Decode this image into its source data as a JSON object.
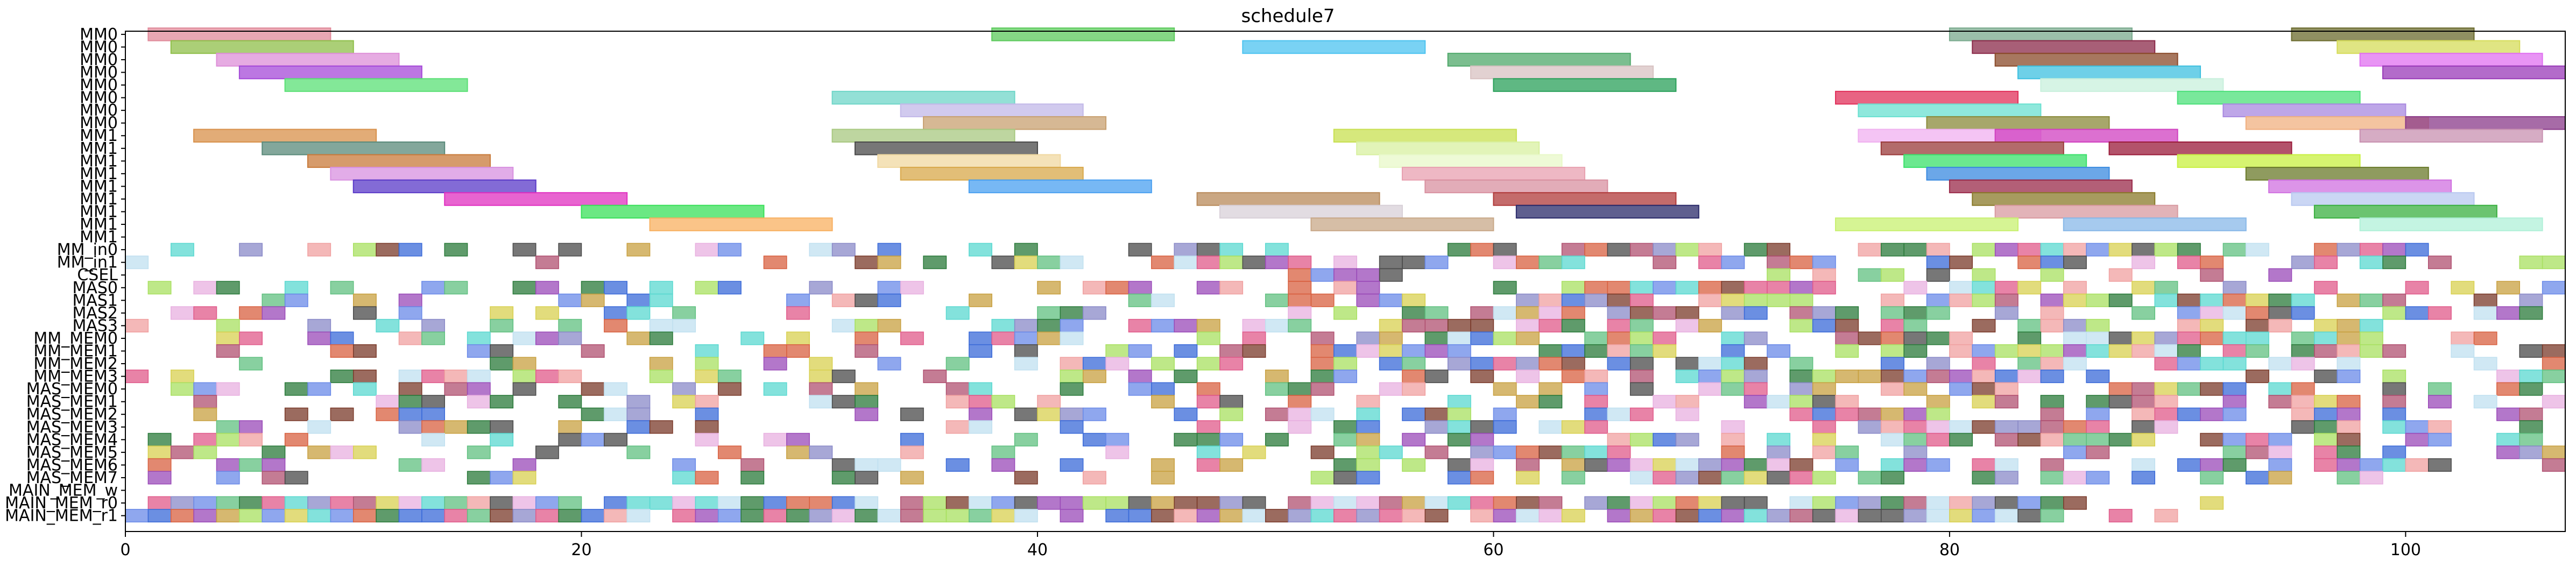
{
  "chart_data": {
    "type": "gantt",
    "title": "schedule7",
    "xlabel": "",
    "ylabel": "",
    "xlim": [
      0,
      107
    ],
    "x_ticks": [
      0,
      20,
      40,
      60,
      80,
      100
    ],
    "x_tick_labels": [
      "0",
      "20",
      "40",
      "60",
      "80",
      "100"
    ],
    "rows": [
      "MM0",
      "MM0",
      "MM0",
      "MM0",
      "MM0",
      "MM0",
      "MM0",
      "MM0",
      "MM1",
      "MM1",
      "MM1",
      "MM1",
      "MM1",
      "MM1",
      "MM1",
      "MM1",
      "MM1",
      "MM_in0",
      "MM_in1",
      "CSEL",
      "MAS0",
      "MAS1",
      "MAS2",
      "MAS3",
      "MM_MEM0",
      "MM_MEM1",
      "MM_MEM2",
      "MM_MEM3",
      "MAS_MEM0",
      "MAS_MEM1",
      "MAS_MEM2",
      "MAS_MEM3",
      "MAS_MEM4",
      "MAS_MEM5",
      "MAS_MEM6",
      "MAS_MEM7",
      "MAIN_MEM_w",
      "MAIN_MEM_r0",
      "MAIN_MEM_r1"
    ],
    "tasks": [
      {
        "row": 0,
        "start": 1,
        "end": 9,
        "color": "#e08a9a"
      },
      {
        "row": 0,
        "start": 38,
        "end": 46,
        "color": "#5cc95c"
      },
      {
        "row": 0,
        "start": 80,
        "end": 88,
        "color": "#7aaa8e"
      },
      {
        "row": 0,
        "start": 95,
        "end": 103,
        "color": "#6b6b2e"
      },
      {
        "row": 1,
        "start": 2,
        "end": 10,
        "color": "#8fbf4a"
      },
      {
        "row": 1,
        "start": 49,
        "end": 57,
        "color": "#4cc3f0"
      },
      {
        "row": 1,
        "start": 81,
        "end": 89,
        "color": "#8b2a4a"
      },
      {
        "row": 1,
        "start": 97,
        "end": 105,
        "color": "#d6dc5a"
      },
      {
        "row": 2,
        "start": 4,
        "end": 12,
        "color": "#de8fd8"
      },
      {
        "row": 2,
        "start": 58,
        "end": 66,
        "color": "#4fa86a"
      },
      {
        "row": 2,
        "start": 82,
        "end": 90,
        "color": "#8a4a2a"
      },
      {
        "row": 2,
        "start": 98,
        "end": 106,
        "color": "#e070f0"
      },
      {
        "row": 3,
        "start": 5,
        "end": 13,
        "color": "#a54ad8"
      },
      {
        "row": 3,
        "start": 59,
        "end": 67,
        "color": "#d8c2c2"
      },
      {
        "row": 3,
        "start": 83,
        "end": 91,
        "color": "#3ec0e0"
      },
      {
        "row": 3,
        "start": 99,
        "end": 107,
        "color": "#9a3ab8"
      },
      {
        "row": 4,
        "start": 7,
        "end": 15,
        "color": "#5ae075"
      },
      {
        "row": 4,
        "start": 60,
        "end": 68,
        "color": "#2aa05a"
      },
      {
        "row": 4,
        "start": 84,
        "end": 92,
        "color": "#c8f0dc"
      },
      {
        "row": 5,
        "start": 31,
        "end": 39,
        "color": "#6fd6c8"
      },
      {
        "row": 5,
        "start": 75,
        "end": 83,
        "color": "#e0305a"
      },
      {
        "row": 5,
        "start": 90,
        "end": 98,
        "color": "#4ce07a"
      },
      {
        "row": 6,
        "start": 34,
        "end": 42,
        "color": "#c2b8e8"
      },
      {
        "row": 6,
        "start": 76,
        "end": 84,
        "color": "#6ae0d0"
      },
      {
        "row": 6,
        "start": 92,
        "end": 100,
        "color": "#a888e0"
      },
      {
        "row": 7,
        "start": 35,
        "end": 43,
        "color": "#c8a070"
      },
      {
        "row": 7,
        "start": 79,
        "end": 87,
        "color": "#8a8a3a"
      },
      {
        "row": 7,
        "start": 93,
        "end": 101,
        "color": "#f0b080"
      },
      {
        "row": 7,
        "start": 100,
        "end": 108,
        "color": "#8a3a8a"
      },
      {
        "row": 8,
        "start": 3,
        "end": 11,
        "color": "#d8904a"
      },
      {
        "row": 8,
        "start": 31,
        "end": 39,
        "color": "#a8c880"
      },
      {
        "row": 8,
        "start": 53,
        "end": 61,
        "color": "#c8e050"
      },
      {
        "row": 8,
        "start": 76,
        "end": 84,
        "color": "#f0b0f0"
      },
      {
        "row": 8,
        "start": 82,
        "end": 90,
        "color": "#d040c0"
      },
      {
        "row": 8,
        "start": 98,
        "end": 106,
        "color": "#c890b0"
      },
      {
        "row": 9,
        "start": 6,
        "end": 14,
        "color": "#5a8a7a"
      },
      {
        "row": 9,
        "start": 32,
        "end": 40,
        "color": "#4a4a4a"
      },
      {
        "row": 9,
        "start": 54,
        "end": 62,
        "color": "#d8f0a0"
      },
      {
        "row": 9,
        "start": 77,
        "end": 85,
        "color": "#9a3a3a"
      },
      {
        "row": 9,
        "start": 87,
        "end": 95,
        "color": "#9a1a3a"
      },
      {
        "row": 10,
        "start": 8,
        "end": 16,
        "color": "#c87a3a"
      },
      {
        "row": 10,
        "start": 33,
        "end": 41,
        "color": "#f0d8a0"
      },
      {
        "row": 10,
        "start": 55,
        "end": 63,
        "color": "#e8f8c8"
      },
      {
        "row": 10,
        "start": 78,
        "end": 86,
        "color": "#3ae06a"
      },
      {
        "row": 10,
        "start": 90,
        "end": 98,
        "color": "#c8f040"
      },
      {
        "row": 11,
        "start": 9,
        "end": 17,
        "color": "#d890e0"
      },
      {
        "row": 11,
        "start": 34,
        "end": 42,
        "color": "#d8a84a"
      },
      {
        "row": 11,
        "start": 56,
        "end": 64,
        "color": "#e8a0b0"
      },
      {
        "row": 11,
        "start": 79,
        "end": 87,
        "color": "#3a8ae0"
      },
      {
        "row": 11,
        "start": 93,
        "end": 101,
        "color": "#6a7a2a"
      },
      {
        "row": 12,
        "start": 10,
        "end": 18,
        "color": "#5a3ac8"
      },
      {
        "row": 12,
        "start": 37,
        "end": 45,
        "color": "#4aa0f0"
      },
      {
        "row": 12,
        "start": 57,
        "end": 65,
        "color": "#d890a0"
      },
      {
        "row": 12,
        "start": 80,
        "end": 88,
        "color": "#9a2a4a"
      },
      {
        "row": 12,
        "start": 94,
        "end": 102,
        "color": "#d070e0"
      },
      {
        "row": 13,
        "start": 14,
        "end": 22,
        "color": "#e030c0"
      },
      {
        "row": 13,
        "start": 47,
        "end": 55,
        "color": "#b88a5a"
      },
      {
        "row": 13,
        "start": 60,
        "end": 68,
        "color": "#b03a3a"
      },
      {
        "row": 13,
        "start": 81,
        "end": 89,
        "color": "#8a7a2a"
      },
      {
        "row": 13,
        "start": 95,
        "end": 103,
        "color": "#b8c8f0"
      },
      {
        "row": 14,
        "start": 20,
        "end": 28,
        "color": "#3ae05a"
      },
      {
        "row": 14,
        "start": 48,
        "end": 56,
        "color": "#d8d0d8"
      },
      {
        "row": 14,
        "start": 61,
        "end": 69,
        "color": "#2a2a6a"
      },
      {
        "row": 14,
        "start": 82,
        "end": 90,
        "color": "#d89aa0"
      },
      {
        "row": 14,
        "start": 96,
        "end": 104,
        "color": "#3ab040"
      },
      {
        "row": 15,
        "start": 23,
        "end": 31,
        "color": "#f8b060"
      },
      {
        "row": 15,
        "start": 52,
        "end": 60,
        "color": "#c8a888"
      },
      {
        "row": 15,
        "start": 75,
        "end": 83,
        "color": "#c8f070"
      },
      {
        "row": 15,
        "start": 85,
        "end": 93,
        "color": "#88b8e8"
      },
      {
        "row": 15,
        "start": 98,
        "end": 106,
        "color": "#b0f0d8"
      }
    ],
    "grid": false
  }
}
